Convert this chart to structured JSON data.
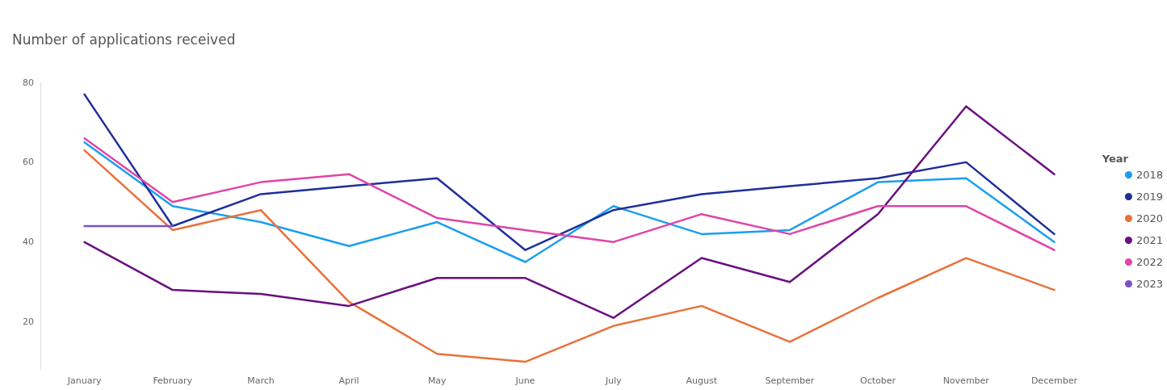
{
  "chart_data": {
    "type": "line",
    "title": "Number of applications received",
    "legend_title": "Year",
    "categories": [
      "January",
      "February",
      "March",
      "April",
      "May",
      "June",
      "July",
      "August",
      "September",
      "October",
      "November",
      "December"
    ],
    "series": [
      {
        "name": "2018",
        "color": "#1a9ff0",
        "values": [
          65,
          49,
          45,
          39,
          45,
          35,
          49,
          42,
          43,
          55,
          56,
          40
        ]
      },
      {
        "name": "2019",
        "color": "#1e2e9a",
        "values": [
          77,
          44,
          52,
          54,
          56,
          38,
          48,
          52,
          54,
          56,
          60,
          42
        ]
      },
      {
        "name": "2020",
        "color": "#e8713a",
        "values": [
          63,
          43,
          48,
          25,
          12,
          10,
          19,
          24,
          15,
          26,
          36,
          28
        ]
      },
      {
        "name": "2021",
        "color": "#6b0f80",
        "values": [
          40,
          28,
          27,
          24,
          31,
          31,
          21,
          36,
          30,
          47,
          74,
          57
        ]
      },
      {
        "name": "2022",
        "color": "#e044a8",
        "values": [
          66,
          50,
          55,
          57,
          46,
          43,
          40,
          47,
          42,
          49,
          49,
          38
        ]
      },
      {
        "name": "2023",
        "color": "#7b4fc9",
        "values": [
          44,
          44,
          null,
          null,
          null,
          null,
          null,
          null,
          null,
          null,
          null,
          null
        ]
      }
    ],
    "ylim": [
      8,
      80
    ],
    "yticks": [
      20,
      40,
      60,
      80
    ],
    "grid": false,
    "legend": "right",
    "marker": "none",
    "line_style": "solid"
  }
}
